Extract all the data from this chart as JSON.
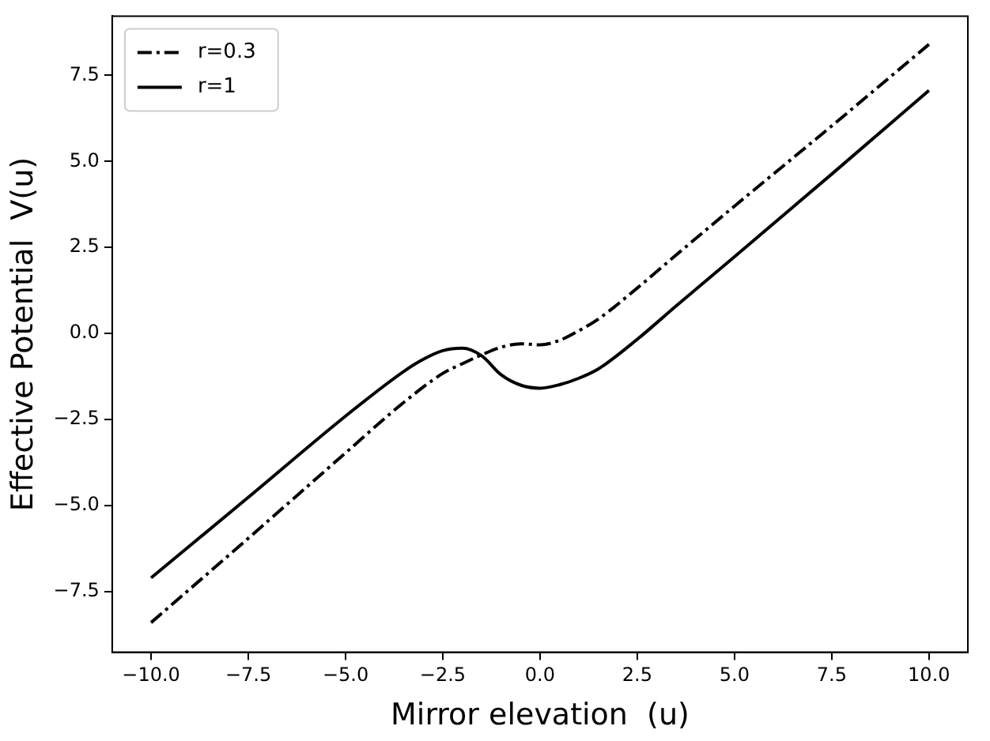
{
  "chart_data": {
    "type": "line",
    "xlabel": "Mirror elevation  (u)",
    "ylabel": "Effective Potential  V(u)",
    "xlim": [
      -11,
      11
    ],
    "ylim": [
      -9.26,
      9.22
    ],
    "xticks": [
      {
        "value": -10,
        "label": "−10.0"
      },
      {
        "value": -7.5,
        "label": "−7.5"
      },
      {
        "value": -5,
        "label": "−5.0"
      },
      {
        "value": -2.5,
        "label": "−2.5"
      },
      {
        "value": 0,
        "label": "0.0"
      },
      {
        "value": 2.5,
        "label": "2.5"
      },
      {
        "value": 5,
        "label": "5.0"
      },
      {
        "value": 7.5,
        "label": "7.5"
      },
      {
        "value": 10,
        "label": "10.0"
      }
    ],
    "yticks": [
      {
        "value": -7.5,
        "label": "−7.5"
      },
      {
        "value": -5,
        "label": "−5.0"
      },
      {
        "value": -2.5,
        "label": "−2.5"
      },
      {
        "value": 0,
        "label": "0.0"
      },
      {
        "value": 2.5,
        "label": "2.5"
      },
      {
        "value": 5,
        "label": "5.0"
      },
      {
        "value": 7.5,
        "label": "7.5"
      }
    ],
    "grid": false,
    "legend": "top left",
    "marker": "none",
    "series": [
      {
        "name": "r=0.3",
        "color": "#000000",
        "line_style": "dashdot",
        "x": [
          -10,
          -7.5,
          -5,
          -3.5,
          -2.5,
          -2,
          -1.5,
          -1,
          -0.5,
          0,
          0.5,
          1,
          1.5,
          2.5,
          3.5,
          5,
          7.5,
          10
        ],
        "values": [
          -8.4,
          -5.95,
          -3.47,
          -2.0,
          -1.16,
          -0.88,
          -0.62,
          -0.4,
          -0.3,
          -0.33,
          -0.2,
          0.08,
          0.42,
          1.32,
          2.28,
          3.7,
          6.03,
          8.4
        ]
      },
      {
        "name": "r=1",
        "color": "#000000",
        "line_style": "solid",
        "x": [
          -10,
          -7.5,
          -5,
          -3.5,
          -3,
          -2.5,
          -2,
          -1.5,
          -1,
          -0.5,
          0,
          0.5,
          1,
          1.5,
          2.5,
          3.5,
          5,
          7.5,
          10
        ],
        "values": [
          -7.1,
          -4.76,
          -2.4,
          -1.1,
          -0.75,
          -0.5,
          -0.43,
          -0.65,
          -1.2,
          -1.5,
          -1.59,
          -1.49,
          -1.3,
          -1.03,
          -0.17,
          0.8,
          2.23,
          4.63,
          7.06
        ]
      }
    ]
  }
}
